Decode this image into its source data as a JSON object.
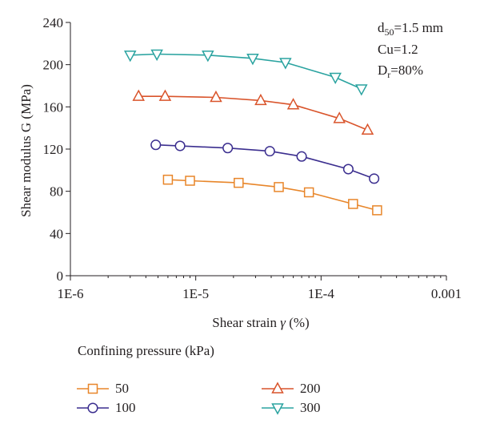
{
  "chart_data": {
    "type": "line",
    "xscale": "log",
    "xlim": [
      1e-06,
      0.001
    ],
    "ylim": [
      0,
      240
    ],
    "xticks": [
      1e-06,
      1e-05,
      0.0001,
      0.001
    ],
    "xtick_labels": [
      "1E-6",
      "1E-5",
      "1E-4",
      "0.001"
    ],
    "yticks": [
      0,
      40,
      80,
      120,
      160,
      200,
      240
    ],
    "ytick_labels": [
      "0",
      "40",
      "80",
      "120",
      "160",
      "200",
      "240"
    ],
    "xlabel_text": "Shear strain ",
    "xlabel_symbol": "γ",
    "xlabel_unit": " (%)",
    "ylabel": "Shear modulus G (MPa)",
    "grid": false,
    "annotations": {
      "d50": {
        "main": "d",
        "sub": "50",
        "rest": "=1.5 mm"
      },
      "cu": "Cu=1.2",
      "dr": {
        "main": "D",
        "sub": "r",
        "rest": "=80%"
      }
    },
    "legend_title": "Confining pressure (kPa)",
    "legend_position": "bottom",
    "series": [
      {
        "name": "50",
        "marker": "square",
        "color": "#e8862a",
        "x": [
          6e-06,
          9e-06,
          2.2e-05,
          4.6e-05,
          8e-05,
          0.00018,
          0.00028
        ],
        "y": [
          91,
          90,
          88,
          84,
          79,
          68,
          62
        ]
      },
      {
        "name": "100",
        "marker": "circle",
        "color": "#3b2e8f",
        "x": [
          4.8e-06,
          7.5e-06,
          1.8e-05,
          3.9e-05,
          7e-05,
          0.000165,
          0.000265
        ],
        "y": [
          124,
          123,
          121,
          118,
          113,
          101,
          92
        ]
      },
      {
        "name": "200",
        "marker": "triangle-up",
        "color": "#d9542b",
        "x": [
          3.5e-06,
          5.7e-06,
          1.45e-05,
          3.3e-05,
          6e-05,
          0.00014,
          0.000235
        ],
        "y": [
          170,
          170,
          169,
          166,
          162,
          149,
          138
        ]
      },
      {
        "name": "300",
        "marker": "triangle-down",
        "color": "#2aa3a0",
        "x": [
          3e-06,
          4.9e-06,
          1.25e-05,
          2.85e-05,
          5.2e-05,
          0.00013,
          0.00021
        ],
        "y": [
          209,
          210,
          209,
          206,
          202,
          188,
          177
        ]
      }
    ]
  }
}
